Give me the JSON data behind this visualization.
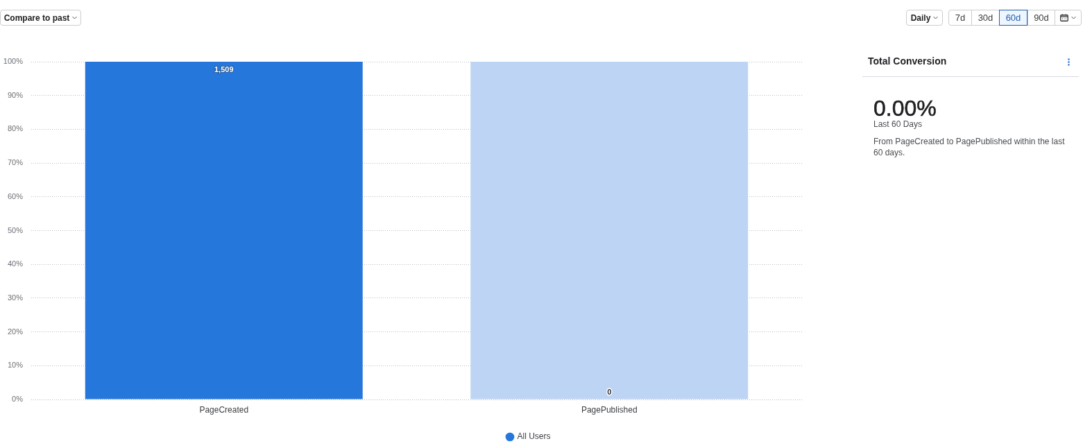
{
  "chart_data": [
    {
      "type": "bar",
      "categories": [
        "PageCreated",
        "PagePublished"
      ],
      "stacked": true,
      "series": [
        {
          "name": "All Users",
          "color": "#2577db",
          "values": [
            100,
            0
          ]
        },
        {
          "color": "#bdd4f4",
          "values": [
            null,
            100
          ]
        }
      ],
      "ylim": [
        0,
        100
      ],
      "yticks": [
        {
          "value": 0,
          "label": "0%"
        },
        {
          "value": 10,
          "label": "10%"
        },
        {
          "value": 20,
          "label": "20%"
        },
        {
          "value": 30,
          "label": "30%"
        },
        {
          "value": 40,
          "label": "40%"
        },
        {
          "value": 50,
          "label": "50%"
        },
        {
          "value": 60,
          "label": "60%"
        },
        {
          "value": 70,
          "label": "70%"
        },
        {
          "value": 80,
          "label": "80%"
        },
        {
          "value": 90,
          "label": "90%"
        },
        {
          "value": 100,
          "label": "100%"
        }
      ],
      "grid": "y",
      "legend": "bottom",
      "annotations": [
        "Compare to past",
        "Daily",
        "7d",
        "30d",
        "60d",
        "90d",
        {
          "text": "1,509",
          "x": "PageCreated",
          "y": 100
        },
        {
          "text": "0",
          "x": "PagePublished",
          "y": 0
        }
      ]
    },
    {
      "type": "other",
      "title": "Total Conversion",
      "annotations": [
        "0.00%",
        "Last 60 Days",
        "From PageCreated to PagePublished within the last 60 days."
      ]
    }
  ]
}
